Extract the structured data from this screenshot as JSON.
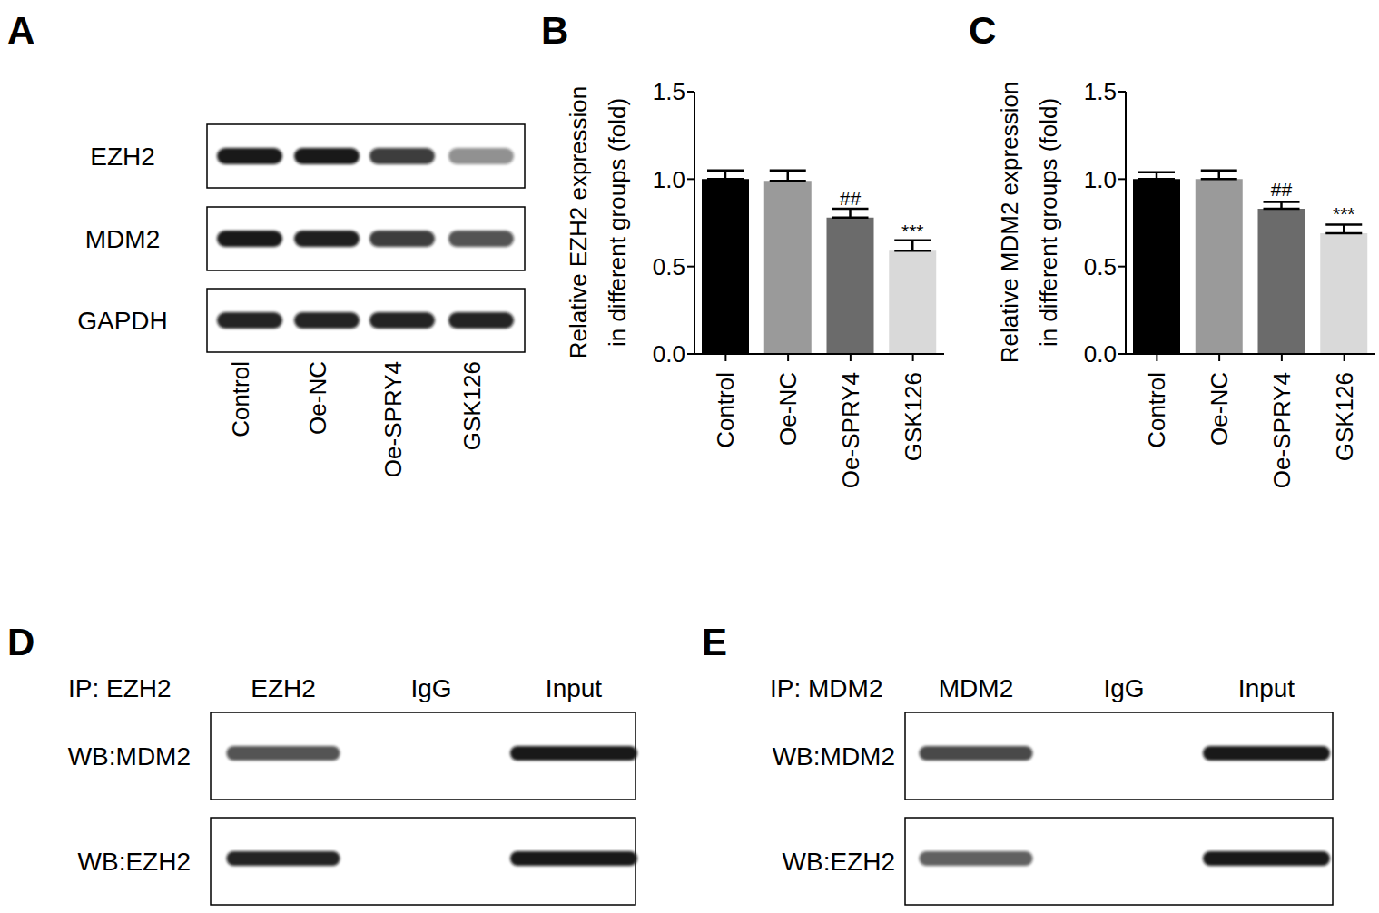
{
  "chart_data": [
    {
      "panel": "B",
      "type": "bar",
      "ylabel": [
        "Relative EZH2 expression",
        "in different groups (fold)"
      ],
      "categories": [
        "Control",
        "Oe-NC",
        "Oe-SPRY4",
        "GSK126"
      ],
      "values": [
        1.0,
        0.99,
        0.78,
        0.59
      ],
      "errors": [
        0.05,
        0.06,
        0.05,
        0.06
      ],
      "colors": [
        "#000000",
        "#9a9a9a",
        "#6b6b6b",
        "#d9d9d9"
      ],
      "annotations": [
        {
          "category": "Oe-SPRY4",
          "text": "##"
        },
        {
          "category": "GSK126",
          "text": "***"
        }
      ],
      "ylim": [
        0,
        1.5
      ],
      "yticks": [
        {
          "value": 0,
          "label": "0.0"
        },
        {
          "value": 0.5,
          "label": "0.5"
        },
        {
          "value": 1,
          "label": "1.0"
        },
        {
          "value": 1.5,
          "label": "1.5"
        }
      ],
      "grid": false
    },
    {
      "panel": "C",
      "type": "bar",
      "ylabel": [
        "Relative MDM2 expression",
        "in different groups (fold)"
      ],
      "categories": [
        "Control",
        "Oe-NC",
        "Oe-SPRY4",
        "GSK126"
      ],
      "values": [
        1.0,
        1.0,
        0.83,
        0.69
      ],
      "errors": [
        0.04,
        0.05,
        0.04,
        0.05
      ],
      "colors": [
        "#000000",
        "#9a9a9a",
        "#6b6b6b",
        "#d9d9d9"
      ],
      "annotations": [
        {
          "category": "Oe-SPRY4",
          "text": "##"
        },
        {
          "category": "GSK126",
          "text": "***"
        }
      ],
      "ylim": [
        0,
        1.5
      ],
      "yticks": [
        {
          "value": 0,
          "label": "0.0"
        },
        {
          "value": 0.5,
          "label": "0.5"
        },
        {
          "value": 1,
          "label": "1.0"
        },
        {
          "value": 1.5,
          "label": "1.5"
        }
      ],
      "grid": false
    }
  ],
  "blots": [
    {
      "panel": "A",
      "lanes": [
        "Control",
        "Oe-NC",
        "Oe-SPRY4",
        "GSK126"
      ],
      "rows": [
        {
          "label": "EZH2",
          "band_intensity": [
            0.95,
            0.95,
            0.8,
            0.45
          ]
        },
        {
          "label": "MDM2",
          "band_intensity": [
            0.95,
            0.92,
            0.8,
            0.7
          ]
        },
        {
          "label": "GAPDH",
          "band_intensity": [
            0.9,
            0.9,
            0.9,
            0.9
          ]
        }
      ]
    },
    {
      "panel": "D",
      "title": "IP: EZH2",
      "lanes": [
        "EZH2",
        "IgG",
        "Input"
      ],
      "rows": [
        {
          "label": "WB:MDM2",
          "band_intensity": [
            0.7,
            null,
            0.95
          ]
        },
        {
          "label": "WB:EZH2",
          "band_intensity": [
            0.9,
            null,
            0.95
          ]
        }
      ]
    },
    {
      "panel": "E",
      "title": "IP: MDM2",
      "lanes": [
        "MDM2",
        "IgG",
        "Input"
      ],
      "rows": [
        {
          "label": "WB:MDM2",
          "band_intensity": [
            0.75,
            null,
            0.95
          ]
        },
        {
          "label": "WB:EZH2",
          "band_intensity": [
            0.65,
            null,
            0.95
          ]
        }
      ]
    }
  ]
}
